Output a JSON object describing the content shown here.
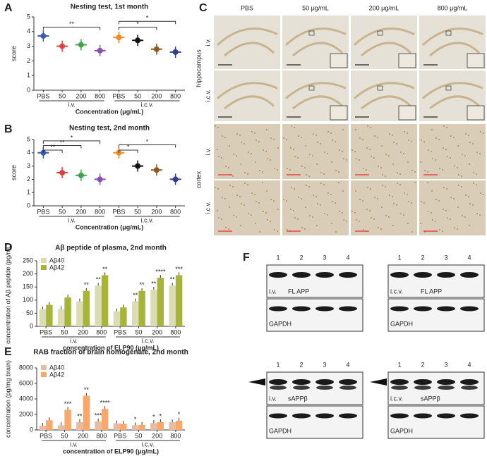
{
  "chart_data": [
    {
      "type": "dot",
      "panel": "A",
      "title": "Nesting test, 1st month",
      "ylabel": "score",
      "xlabel": "Concentration (μg/mL)",
      "categories": [
        "PBS",
        "50",
        "200",
        "800",
        "PBS",
        "50",
        "200",
        "800"
      ],
      "groups": [
        "i.v.",
        "i.c.v."
      ],
      "values": [
        3.7,
        3.0,
        3.1,
        2.7,
        3.6,
        3.4,
        2.8,
        2.6
      ],
      "colors": [
        "#3a5ba9",
        "#d94141",
        "#3fa34d",
        "#8a4fb5",
        "#f08a24",
        "#111111",
        "#8b5a1e",
        "#2d3e8a"
      ],
      "ylim": [
        0,
        5
      ],
      "yticks": [
        0,
        1,
        2,
        3,
        4,
        5
      ],
      "annotations": [
        "**",
        "*",
        "*"
      ]
    },
    {
      "type": "dot",
      "panel": "B",
      "title": "Nesting test, 2nd month",
      "ylabel": "score",
      "xlabel": "Concentration (μg/mL)",
      "categories": [
        "PBS",
        "50",
        "200",
        "800",
        "PBS",
        "50",
        "200",
        "800"
      ],
      "groups": [
        "i.v.",
        "i.c.v."
      ],
      "values": [
        4.0,
        2.5,
        2.3,
        2.0,
        4.0,
        3.0,
        2.7,
        2.0
      ],
      "colors": [
        "#3a5ba9",
        "#d94141",
        "#3fa34d",
        "#8a4fb5",
        "#f08a24",
        "#111111",
        "#8b5a1e",
        "#2d3e8a"
      ],
      "ylim": [
        0,
        5
      ],
      "yticks": [
        0,
        1,
        2,
        3,
        4,
        5
      ],
      "annotations": [
        "*",
        "**",
        "**",
        "*",
        "*"
      ]
    },
    {
      "type": "bar",
      "panel": "D",
      "title": "Aβ peptide of plasma, 2nd month",
      "ylabel": "concentration of Aβ peptide (pg/mL)",
      "xlabel": "concentration of ELP90 (μg/mL)",
      "categories": [
        "PBS",
        "50",
        "200",
        "800",
        "PBS",
        "50",
        "200",
        "800"
      ],
      "groups": [
        "i.v.",
        "i.c.v."
      ],
      "series": [
        {
          "name": "Aβ40",
          "color": "#dcdcb4",
          "values": [
            65,
            65,
            95,
            155,
            57,
            95,
            140,
            155
          ],
          "significance": [
            null,
            null,
            null,
            "**",
            null,
            "**",
            "**",
            "**"
          ]
        },
        {
          "name": "Aβ42",
          "color": "#a7b43a",
          "values": [
            82,
            110,
            135,
            195,
            72,
            135,
            185,
            195
          ],
          "significance": [
            null,
            null,
            "**",
            "**",
            null,
            "**",
            "****",
            "***"
          ]
        }
      ],
      "ylim": [
        0,
        250
      ],
      "yticks": [
        0,
        50,
        100,
        150,
        200,
        250
      ]
    },
    {
      "type": "bar",
      "panel": "E",
      "title": "RAB fraction of brain homogenate, 2nd month",
      "ylabel": "concentration (pg/mg brain)",
      "xlabel": "concentration of ELP90 (μg/mL)",
      "categories": [
        "PBS",
        "50",
        "200",
        "800",
        "PBS",
        "50",
        "200",
        "800"
      ],
      "groups": [
        "i.v.",
        "i.c.v."
      ],
      "series": [
        {
          "name": "Aβ40",
          "color": "#e8bba3",
          "values": [
            550,
            600,
            1000,
            1100,
            850,
            600,
            900,
            1000
          ],
          "significance": [
            null,
            null,
            "**",
            "***",
            null,
            "*",
            "*",
            null
          ]
        },
        {
          "name": "Aβ42",
          "color": "#f6a96a",
          "values": [
            1250,
            2600,
            4400,
            2700,
            800,
            650,
            1000,
            1200
          ],
          "significance": [
            null,
            "***",
            "**",
            "****",
            null,
            null,
            "*",
            "*"
          ]
        }
      ],
      "ylim": [
        0,
        8000
      ],
      "yticks": [
        0,
        2000,
        4000,
        6000,
        8000
      ]
    }
  ],
  "histology": {
    "panel": "C",
    "columns": [
      "PBS",
      "50 μg/mL",
      "200 μg/mL",
      "800 μg/mL"
    ],
    "regions": [
      {
        "name": "hippocampus",
        "rows": [
          "i.v.",
          "i.c.v."
        ]
      },
      {
        "name": "cortex",
        "rows": [
          "i.v.",
          "i.c.v."
        ]
      }
    ]
  },
  "blots": {
    "panel": "F",
    "lanes": [
      "1",
      "2",
      "3",
      "4"
    ],
    "blocks": [
      {
        "route": "i.v.",
        "target": "FL APP",
        "control": "GAPDH"
      },
      {
        "route": "i.c.v.",
        "target": "FL APP",
        "control": "GAPDH"
      },
      {
        "route": "i.v.",
        "target": "sAPPβ",
        "control": "GAPDH"
      },
      {
        "route": "i.c.v.",
        "target": "sAPPβ",
        "control": "GAPDH"
      }
    ]
  }
}
